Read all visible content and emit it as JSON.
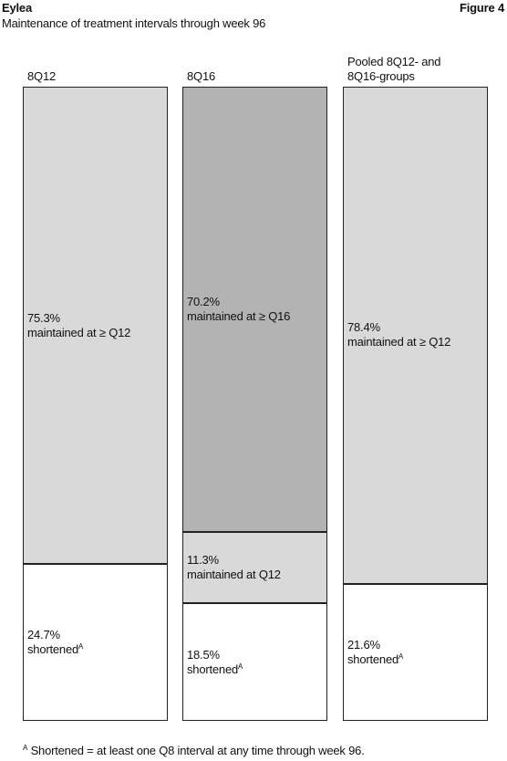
{
  "chart_data": {
    "type": "stacked-bar",
    "title": "Eylea",
    "figure_label": "Figure 4",
    "subtitle": "Maintenance of treatment intervals through week 96",
    "categories": [
      "8Q12",
      "8Q16",
      "Pooled 8Q12- and 8Q16-groups"
    ],
    "ylim": [
      0,
      100
    ],
    "series": [
      {
        "name": "shortened",
        "color": "#ffffff",
        "note_marker": "A",
        "values": [
          24.7,
          18.5,
          21.6
        ],
        "value_labels": [
          "24.7%",
          "18.5%",
          "21.6%"
        ]
      },
      {
        "name": "maintained at Q12",
        "color": "#d9d9d9",
        "values": [
          null,
          11.3,
          null
        ],
        "value_labels": [
          null,
          "11.3%",
          null
        ]
      },
      {
        "name": "maintained at ≥ Q12",
        "color": "#d9d9d9",
        "values": [
          75.3,
          null,
          78.4
        ],
        "value_labels": [
          "75.3%",
          null,
          "78.4%"
        ]
      },
      {
        "name": "maintained at ≥ Q16",
        "color": "#b3b3b3",
        "values": [
          null,
          70.2,
          null
        ],
        "value_labels": [
          null,
          "70.2%",
          null
        ]
      }
    ],
    "footnote": {
      "marker": "A",
      "text": "Shortened = at least one Q8 interval at any time through week 96."
    }
  }
}
